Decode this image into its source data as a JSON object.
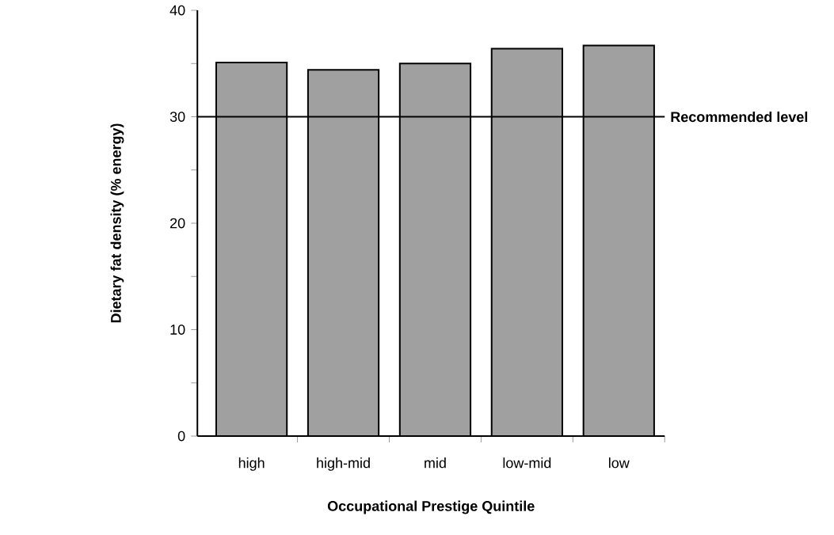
{
  "chart_data": {
    "type": "bar",
    "xlabel": "Occupational Prestige Quintile",
    "ylabel": "Dietary fat density (% energy)",
    "categories": [
      "high",
      "high-mid",
      "mid",
      "low-mid",
      "low"
    ],
    "values": [
      35.1,
      34.4,
      35.0,
      36.4,
      36.7
    ],
    "color": "#a0a0a0",
    "ylim": [
      0,
      40
    ],
    "yticks": [
      0,
      {
        "value": 5,
        "label": null
      },
      10,
      {
        "value": 15,
        "label": null
      },
      20,
      {
        "value": 25,
        "label": null
      },
      30,
      {
        "value": 35,
        "label": null
      },
      40
    ],
    "grid": false,
    "ref_lines": [
      {
        "axis": "y",
        "value": 30,
        "label": "Recommended level",
        "color": "#000000"
      }
    ]
  }
}
